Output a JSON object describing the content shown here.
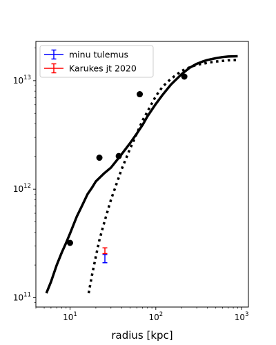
{
  "chart_data": {
    "type": "line",
    "xlabel": "radius [kpc]",
    "ylabel": "",
    "xscale": "log",
    "yscale": "log",
    "xlim": [
      4,
      1200
    ],
    "ylim": [
      82000000000,
      23000000000000
    ],
    "x_ticks": [
      {
        "value": 10,
        "base": "10",
        "exp": "1"
      },
      {
        "value": 100,
        "base": "10",
        "exp": "2"
      },
      {
        "value": 1000,
        "base": "10",
        "exp": "3"
      }
    ],
    "y_ticks": [
      {
        "value": 100000000000,
        "base": "10",
        "exp": "11"
      },
      {
        "value": 1000000000000,
        "base": "10",
        "exp": "12"
      },
      {
        "value": 10000000000000,
        "base": "10",
        "exp": "13"
      }
    ],
    "grid": false,
    "legend_position": "top-left",
    "legend": [
      "minu tulemus",
      "Karukes jt 2020"
    ],
    "series": [
      {
        "style": "solid-line",
        "color": "#000000",
        "x": [
          5.3,
          6,
          7,
          8,
          9,
          10,
          12,
          14,
          16,
          18,
          20,
          25,
          30,
          40,
          50,
          60,
          70,
          80,
          100,
          120,
          150,
          200,
          250,
          300,
          350,
          400,
          500,
          600,
          700,
          900
        ],
        "y": [
          110000000000,
          140000000000,
          200000000000,
          260000000000,
          320000000000,
          390000000000,
          560000000000,
          720000000000,
          900000000000,
          1030000000000,
          1180000000000,
          1400000000000,
          1580000000000,
          2100000000000,
          2650000000000,
          3250000000000,
          3900000000000,
          4700000000000,
          6100000000000,
          7400000000000,
          9200000000000,
          11500000000000,
          13200000000000,
          14300000000000,
          15000000000000,
          15500000000000,
          16100000000000,
          16500000000000,
          16700000000000,
          16800000000000
        ]
      },
      {
        "style": "dotted-line",
        "color": "#000000",
        "x": [
          16.5,
          18,
          20,
          22,
          25,
          30,
          35,
          40,
          50,
          60,
          70,
          80,
          100,
          120,
          150,
          200,
          250,
          300,
          400,
          500,
          600,
          700,
          900
        ],
        "y": [
          110000000000,
          160000000000,
          240000000000,
          340000000000,
          490000000000,
          800000000000,
          1130000000000,
          1530000000000,
          2350000000000,
          3250000000000,
          4300000000000,
          5200000000000,
          7200000000000,
          8800000000000,
          10400000000000,
          12300000000000,
          13300000000000,
          14000000000000,
          14600000000000,
          15000000000000,
          15200000000000,
          15400000000000,
          15500000000000
        ]
      },
      {
        "style": "points",
        "color": "#000000",
        "x": [
          10,
          22,
          37,
          65,
          215
        ],
        "y": [
          320000000000,
          1950000000000,
          2020000000000,
          7500000000000,
          10900000000000
        ]
      }
    ],
    "error_points": [
      {
        "label": "minu tulemus",
        "color": "#0000ff",
        "x": 25.5,
        "y": 230000000000,
        "yerr_low": 210000000000,
        "yerr_high": 250000000000
      },
      {
        "label": "Karukes jt 2020",
        "color": "#ff0000",
        "x": 25.5,
        "y": 270000000000,
        "yerr_low": 255000000000,
        "yerr_high": 288000000000
      }
    ]
  }
}
